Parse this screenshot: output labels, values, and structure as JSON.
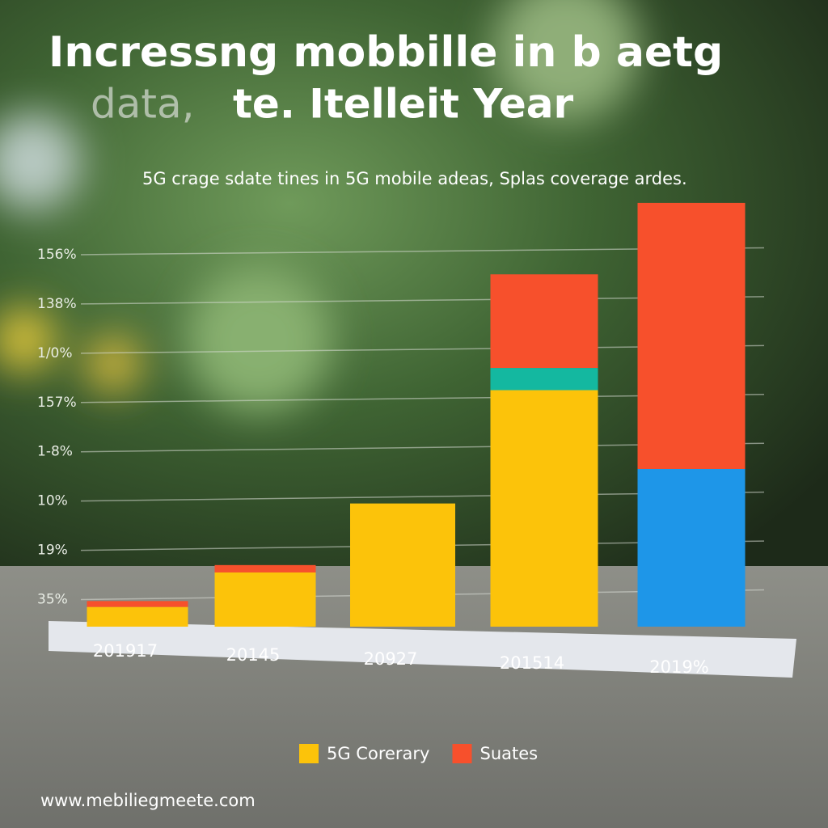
{
  "chart_data": {
    "type": "bar",
    "stacked": true,
    "title": "Incressng mobbille in b aetg",
    "title_line2_faded": "data,",
    "title_line2": "te. Itelleit Year",
    "subtitle": "5G crage sdate tines in 5G mobile adeas, Splas coverage ardes.",
    "axis_labels": [
      "35%",
      "19%",
      "10%",
      "1-8%",
      "157%",
      "1/0%",
      "138%",
      "156%"
    ],
    "categories": [
      "201917",
      "20145",
      "20927",
      "201514",
      "2019%"
    ],
    "ylim": [
      0,
      8.5
    ],
    "series": [
      {
        "color": "#1e96e8",
        "values": [
          0,
          0,
          0,
          0,
          3.2
        ]
      },
      {
        "name": "5G Corerary",
        "color": "#fcc30a",
        "values": [
          0.4,
          1.1,
          2.5,
          4.8,
          0
        ]
      },
      {
        "color": "#14b8a0",
        "values": [
          0,
          0,
          0,
          0.45,
          0
        ]
      },
      {
        "name": "Suates",
        "color": "#f7502c",
        "values": [
          0.12,
          0.15,
          0,
          1.9,
          5.4
        ]
      }
    ],
    "footer": "www.mebiliegmeete.com"
  }
}
